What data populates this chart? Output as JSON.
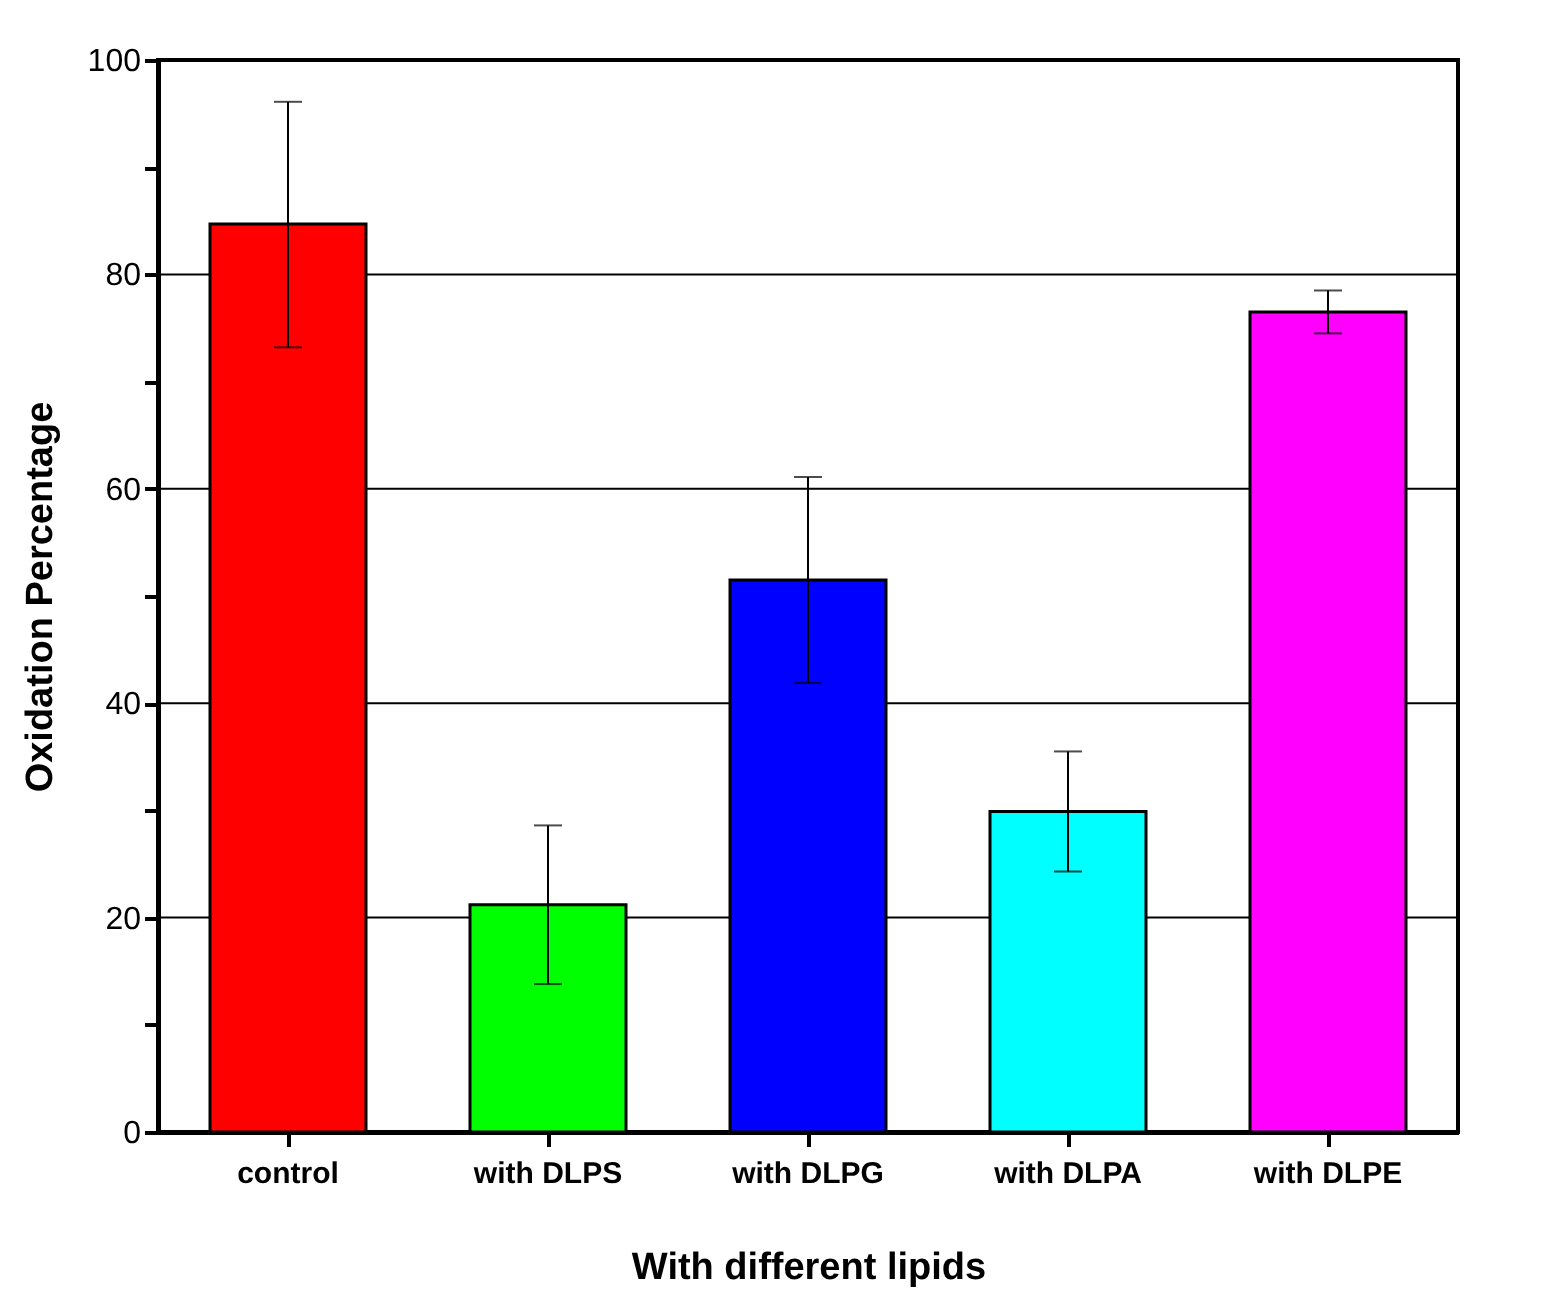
{
  "chart_data": {
    "type": "bar",
    "xlabel": "With different lipids",
    "ylabel": "Oxidation Percentage",
    "categories": [
      "control",
      "with DLPS",
      "with DLPG",
      "with DLPA",
      "with DLPE"
    ],
    "values": [
      84.7,
      21.2,
      51.5,
      29.9,
      76.5
    ],
    "colors": [
      "#ff0000",
      "#00ff00",
      "#0000ff",
      "#00ffff",
      "#ff00ff"
    ],
    "errors": [
      [
        73.2,
        96.1
      ],
      [
        13.8,
        28.6
      ],
      [
        41.9,
        61.1
      ],
      [
        24.3,
        35.5
      ],
      [
        74.5,
        78.5
      ]
    ],
    "ylim": [
      0,
      100
    ],
    "yticks": [
      0,
      {
        "value": 10,
        "label": null
      },
      20,
      {
        "value": 30,
        "label": null
      },
      40,
      {
        "value": 50,
        "label": null
      },
      60,
      {
        "value": 70,
        "label": null
      },
      80,
      {
        "value": 90,
        "label": null
      },
      100
    ],
    "grid": "y"
  }
}
